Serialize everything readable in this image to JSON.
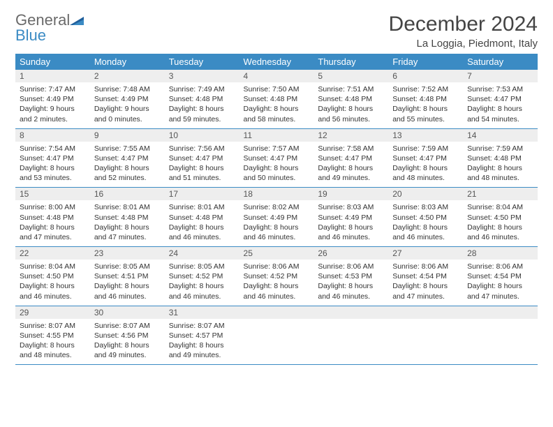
{
  "brand": {
    "word1": "General",
    "word2": "Blue"
  },
  "title": "December 2024",
  "location": "La Loggia, Piedmont, Italy",
  "colors": {
    "header_bg": "#3b8bc4",
    "header_text": "#ffffff",
    "daynum_bg": "#eeeeee",
    "row_border": "#3b8bc4",
    "logo_gray": "#6a6a6a",
    "logo_blue": "#3b8bc4"
  },
  "weekdays": [
    "Sunday",
    "Monday",
    "Tuesday",
    "Wednesday",
    "Thursday",
    "Friday",
    "Saturday"
  ],
  "days": [
    {
      "n": 1,
      "sunrise": "7:47 AM",
      "sunset": "4:49 PM",
      "dl_h": 9,
      "dl_m": 2
    },
    {
      "n": 2,
      "sunrise": "7:48 AM",
      "sunset": "4:49 PM",
      "dl_h": 9,
      "dl_m": 0
    },
    {
      "n": 3,
      "sunrise": "7:49 AM",
      "sunset": "4:48 PM",
      "dl_h": 8,
      "dl_m": 59
    },
    {
      "n": 4,
      "sunrise": "7:50 AM",
      "sunset": "4:48 PM",
      "dl_h": 8,
      "dl_m": 58
    },
    {
      "n": 5,
      "sunrise": "7:51 AM",
      "sunset": "4:48 PM",
      "dl_h": 8,
      "dl_m": 56
    },
    {
      "n": 6,
      "sunrise": "7:52 AM",
      "sunset": "4:48 PM",
      "dl_h": 8,
      "dl_m": 55
    },
    {
      "n": 7,
      "sunrise": "7:53 AM",
      "sunset": "4:47 PM",
      "dl_h": 8,
      "dl_m": 54
    },
    {
      "n": 8,
      "sunrise": "7:54 AM",
      "sunset": "4:47 PM",
      "dl_h": 8,
      "dl_m": 53
    },
    {
      "n": 9,
      "sunrise": "7:55 AM",
      "sunset": "4:47 PM",
      "dl_h": 8,
      "dl_m": 52
    },
    {
      "n": 10,
      "sunrise": "7:56 AM",
      "sunset": "4:47 PM",
      "dl_h": 8,
      "dl_m": 51
    },
    {
      "n": 11,
      "sunrise": "7:57 AM",
      "sunset": "4:47 PM",
      "dl_h": 8,
      "dl_m": 50
    },
    {
      "n": 12,
      "sunrise": "7:58 AM",
      "sunset": "4:47 PM",
      "dl_h": 8,
      "dl_m": 49
    },
    {
      "n": 13,
      "sunrise": "7:59 AM",
      "sunset": "4:47 PM",
      "dl_h": 8,
      "dl_m": 48
    },
    {
      "n": 14,
      "sunrise": "7:59 AM",
      "sunset": "4:48 PM",
      "dl_h": 8,
      "dl_m": 48
    },
    {
      "n": 15,
      "sunrise": "8:00 AM",
      "sunset": "4:48 PM",
      "dl_h": 8,
      "dl_m": 47
    },
    {
      "n": 16,
      "sunrise": "8:01 AM",
      "sunset": "4:48 PM",
      "dl_h": 8,
      "dl_m": 47
    },
    {
      "n": 17,
      "sunrise": "8:01 AM",
      "sunset": "4:48 PM",
      "dl_h": 8,
      "dl_m": 46
    },
    {
      "n": 18,
      "sunrise": "8:02 AM",
      "sunset": "4:49 PM",
      "dl_h": 8,
      "dl_m": 46
    },
    {
      "n": 19,
      "sunrise": "8:03 AM",
      "sunset": "4:49 PM",
      "dl_h": 8,
      "dl_m": 46
    },
    {
      "n": 20,
      "sunrise": "8:03 AM",
      "sunset": "4:50 PM",
      "dl_h": 8,
      "dl_m": 46
    },
    {
      "n": 21,
      "sunrise": "8:04 AM",
      "sunset": "4:50 PM",
      "dl_h": 8,
      "dl_m": 46
    },
    {
      "n": 22,
      "sunrise": "8:04 AM",
      "sunset": "4:50 PM",
      "dl_h": 8,
      "dl_m": 46
    },
    {
      "n": 23,
      "sunrise": "8:05 AM",
      "sunset": "4:51 PM",
      "dl_h": 8,
      "dl_m": 46
    },
    {
      "n": 24,
      "sunrise": "8:05 AM",
      "sunset": "4:52 PM",
      "dl_h": 8,
      "dl_m": 46
    },
    {
      "n": 25,
      "sunrise": "8:06 AM",
      "sunset": "4:52 PM",
      "dl_h": 8,
      "dl_m": 46
    },
    {
      "n": 26,
      "sunrise": "8:06 AM",
      "sunset": "4:53 PM",
      "dl_h": 8,
      "dl_m": 46
    },
    {
      "n": 27,
      "sunrise": "8:06 AM",
      "sunset": "4:54 PM",
      "dl_h": 8,
      "dl_m": 47
    },
    {
      "n": 28,
      "sunrise": "8:06 AM",
      "sunset": "4:54 PM",
      "dl_h": 8,
      "dl_m": 47
    },
    {
      "n": 29,
      "sunrise": "8:07 AM",
      "sunset": "4:55 PM",
      "dl_h": 8,
      "dl_m": 48
    },
    {
      "n": 30,
      "sunrise": "8:07 AM",
      "sunset": "4:56 PM",
      "dl_h": 8,
      "dl_m": 49
    },
    {
      "n": 31,
      "sunrise": "8:07 AM",
      "sunset": "4:57 PM",
      "dl_h": 8,
      "dl_m": 49
    }
  ],
  "labels": {
    "sunrise": "Sunrise:",
    "sunset": "Sunset:",
    "daylight_prefix": "Daylight:",
    "hours_word": "hours",
    "and_word": "and",
    "minutes_word": "minutes."
  }
}
